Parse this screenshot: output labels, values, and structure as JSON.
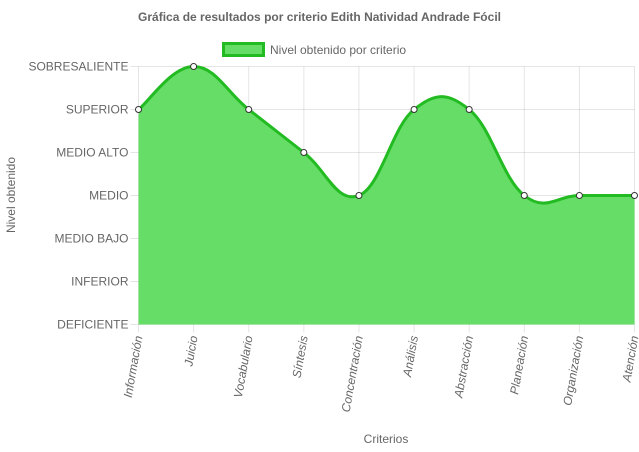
{
  "chart_data": {
    "type": "area",
    "title": "Gráfica de resultados por criterio Edith Natividad Andrade Fócil",
    "xlabel": "Criterios",
    "ylabel": "Nivel obtenido",
    "categories": [
      "Información",
      "Juicio",
      "Vocabulario",
      "Síntesis",
      "Concentración",
      "Análisis",
      "Abstracción",
      "Planeación",
      "Organización",
      "Atención"
    ],
    "y_levels": [
      "DEFICIENTE",
      "INFERIOR",
      "MEDIO BAJO",
      "MEDIO",
      "MEDIO ALTO",
      "SUPERIOR",
      "SOBRESALIENTE"
    ],
    "series": [
      {
        "name": "Nivel obtenido por criterio",
        "values": [
          5,
          6,
          5,
          4,
          3,
          5,
          5,
          3,
          3,
          3
        ]
      }
    ],
    "ylim": [
      0,
      6
    ],
    "grid": true,
    "legend_position": "top",
    "colors": {
      "fill": "#66dd66",
      "line": "#22bb22",
      "point_fill": "#ffffff",
      "point_stroke": "#333333"
    }
  }
}
